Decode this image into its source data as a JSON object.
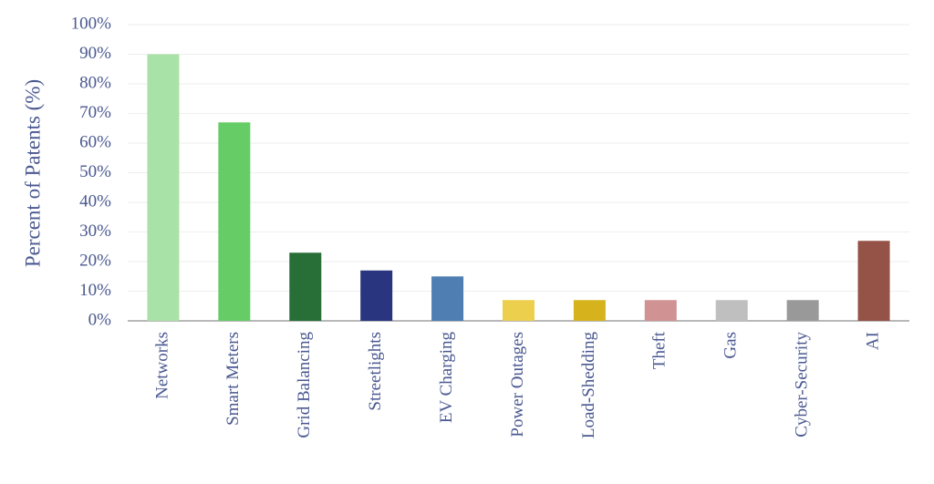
{
  "chart_data": {
    "type": "bar",
    "y_label": "Percent of Patents (%)",
    "categories": [
      "Networks",
      "Smart Meters",
      "Grid Balancing",
      "Streetlights",
      "EV Charging",
      "Power Outages",
      "Load-Shedding",
      "Theft",
      "Gas",
      "Cyber-Security",
      "AI"
    ],
    "values": [
      90,
      67,
      23,
      17,
      15,
      7,
      7,
      7,
      7,
      7,
      27
    ],
    "colors": [
      "#a9e2a6",
      "#66cc66",
      "#286e37",
      "#29367f",
      "#4f7eb3",
      "#eccf4c",
      "#d6b21c",
      "#d09292",
      "#bfbfbf",
      "#999999",
      "#955247"
    ],
    "ylim": [
      0,
      100
    ],
    "yticks": [
      {
        "value": 0,
        "label": "0%"
      },
      {
        "value": 10,
        "label": "10%"
      },
      {
        "value": 20,
        "label": "20%"
      },
      {
        "value": 30,
        "label": "30%"
      },
      {
        "value": 40,
        "label": "40%"
      },
      {
        "value": 50,
        "label": "50%"
      },
      {
        "value": 60,
        "label": "60%"
      },
      {
        "value": 70,
        "label": "70%"
      },
      {
        "value": 80,
        "label": "80%"
      },
      {
        "value": 90,
        "label": "90%"
      },
      {
        "value": 100,
        "label": "100%"
      }
    ],
    "grid": true
  }
}
